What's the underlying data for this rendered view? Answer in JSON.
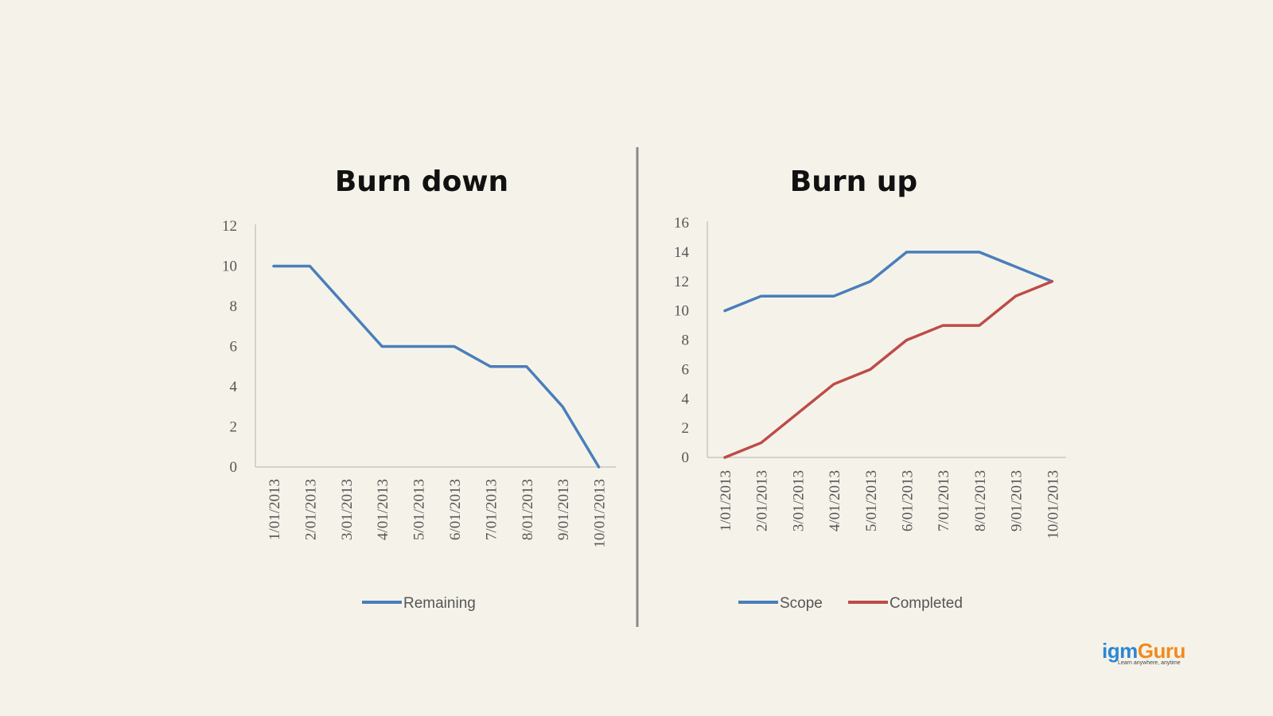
{
  "chart_data": [
    {
      "type": "line",
      "title": "Burn down",
      "categories": [
        "1/01/2013",
        "2/01/2013",
        "3/01/2013",
        "4/01/2013",
        "5/01/2013",
        "6/01/2013",
        "7/01/2013",
        "8/01/2013",
        "9/01/2013",
        "10/01/2013"
      ],
      "series": [
        {
          "name": "Remaining",
          "color": "#4a7ebb",
          "values": [
            10,
            10,
            8,
            6,
            6,
            6,
            5,
            5,
            3,
            0
          ]
        }
      ],
      "ylim": [
        0,
        12
      ],
      "yticks": [
        0,
        2,
        4,
        6,
        8,
        10,
        12
      ],
      "grid": false,
      "legend": "bottom"
    },
    {
      "type": "line",
      "title": "Burn up",
      "categories": [
        "1/01/2013",
        "2/01/2013",
        "3/01/2013",
        "4/01/2013",
        "5/01/2013",
        "6/01/2013",
        "7/01/2013",
        "8/01/2013",
        "9/01/2013",
        "10/01/2013"
      ],
      "series": [
        {
          "name": "Scope",
          "color": "#4a7ebb",
          "values": [
            10,
            11,
            11,
            11,
            12,
            14,
            14,
            14,
            13,
            12
          ]
        },
        {
          "name": "Completed",
          "color": "#be4b48",
          "values": [
            0,
            1,
            3,
            5,
            6,
            8,
            9,
            9,
            11,
            12
          ]
        }
      ],
      "ylim": [
        0,
        16
      ],
      "yticks": [
        0,
        2,
        4,
        6,
        8,
        10,
        12,
        14,
        16
      ],
      "grid": false,
      "legend": "bottom"
    }
  ],
  "logo": {
    "part1": "igm",
    "part2": "Guru",
    "tagline": "Learn anywhere, anytime"
  }
}
